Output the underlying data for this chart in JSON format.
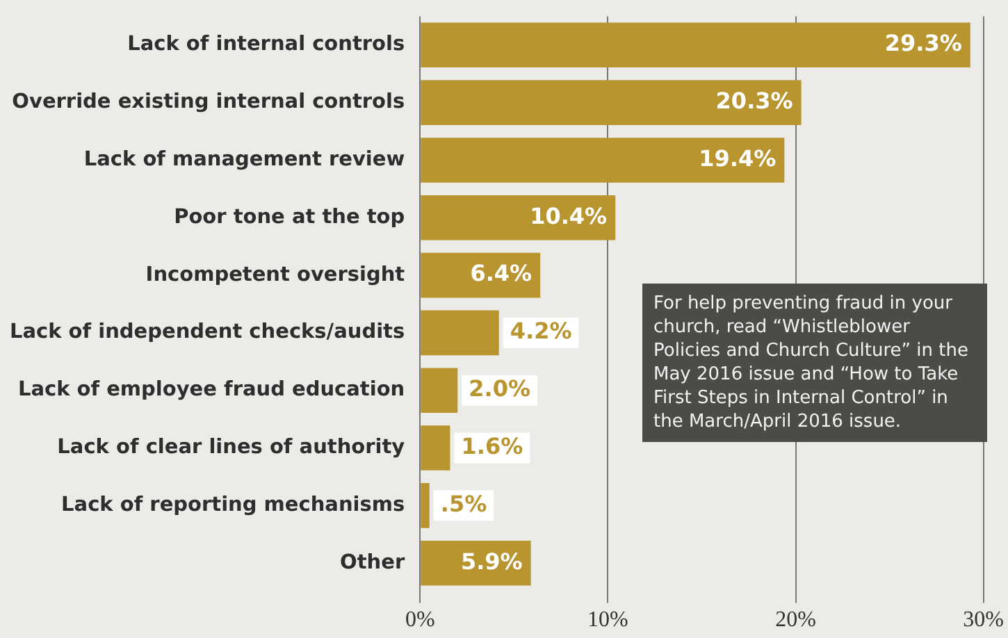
{
  "chart_data": {
    "type": "bar",
    "orientation": "horizontal",
    "categories": [
      "Lack of internal controls",
      "Override existing internal controls",
      "Lack of management review",
      "Poor tone at the top",
      "Incompetent oversight",
      "Lack of independent checks/audits",
      "Lack of employee fraud education",
      "Lack of clear lines of authority",
      "Lack of reporting mechanisms",
      "Other"
    ],
    "values": [
      29.3,
      20.3,
      19.4,
      10.4,
      6.4,
      4.2,
      2.0,
      1.6,
      0.5,
      5.9
    ],
    "value_labels": [
      "29.3%",
      "20.3%",
      "19.4%",
      "10.4%",
      "6.4%",
      "4.2%",
      "2.0%",
      "1.6%",
      ".5%",
      "5.9%"
    ],
    "color": "#b8952f",
    "xlim": [
      0,
      30
    ],
    "xticks": [
      {
        "value": 0,
        "label": "0%"
      },
      {
        "value": 10,
        "label": "10%"
      },
      {
        "value": 20,
        "label": "20%"
      },
      {
        "value": 30,
        "label": "30%"
      }
    ],
    "grid": "x",
    "legend": false,
    "annotations": [
      "For help preventing fraud in your church, read “Whistleblower Policies and Church Culture” in the May 2016 issue and “How to Take First Steps in Internal Control” in the March/April 2016 issue."
    ]
  }
}
